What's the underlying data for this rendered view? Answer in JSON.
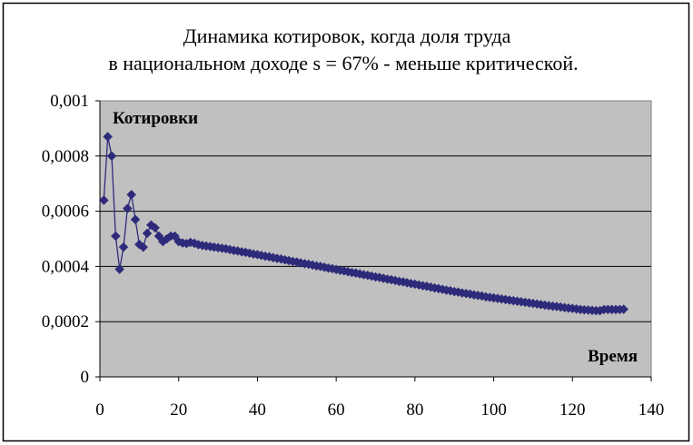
{
  "chart_data": {
    "type": "line",
    "title_lines": [
      "Динамика котировок, когда доля труда",
      "в национальном доходе s = 67% - меньше критической."
    ],
    "ylabel": "Котировки",
    "xlabel": "Время",
    "xlim": [
      0,
      140
    ],
    "ylim": [
      0,
      0.001
    ],
    "x_ticks": [
      "0",
      "20",
      "40",
      "60",
      "80",
      "100",
      "120",
      "140"
    ],
    "y_ticks": [
      "0",
      "0,0002",
      "0,0004",
      "0,0006",
      "0,0008",
      "0,001"
    ],
    "grid": "horizontal",
    "legend": "none",
    "colors": {
      "series": "#2e2a7a",
      "plot_bg": "#c0c0c0"
    },
    "series": [
      {
        "x": [
          1,
          2,
          3,
          4,
          5,
          6,
          7,
          8,
          9,
          10,
          11,
          12,
          13,
          14,
          15,
          16,
          17,
          18,
          19,
          20,
          21,
          22,
          23,
          24,
          25,
          26,
          27,
          28,
          29,
          30,
          31,
          32,
          33,
          34,
          35,
          36,
          37,
          38,
          39,
          40,
          41,
          42,
          43,
          44,
          45,
          46,
          47,
          48,
          49,
          50,
          51,
          52,
          53,
          54,
          55,
          56,
          57,
          58,
          59,
          60,
          61,
          62,
          63,
          64,
          65,
          66,
          67,
          68,
          69,
          70,
          71,
          72,
          73,
          74,
          75,
          76,
          77,
          78,
          79,
          80,
          81,
          82,
          83,
          84,
          85,
          86,
          87,
          88,
          89,
          90,
          91,
          92,
          93,
          94,
          95,
          96,
          97,
          98,
          99,
          100,
          101,
          102,
          103,
          104,
          105,
          106,
          107,
          108,
          109,
          110,
          111,
          112,
          113,
          114,
          115,
          116,
          117,
          118,
          119,
          120,
          121,
          122,
          123,
          124,
          125,
          126,
          127,
          128,
          129,
          130,
          131,
          132,
          133
        ],
        "y": [
          0.00064,
          0.00087,
          0.0008,
          0.00051,
          0.00039,
          0.00047,
          0.00061,
          0.00066,
          0.00057,
          0.00048,
          0.00047,
          0.00052,
          0.00055,
          0.00054,
          0.00051,
          0.00049,
          0.0005,
          0.00051,
          0.00051,
          0.00049,
          0.000485,
          0.000483,
          0.000487,
          0.000484,
          0.000479,
          0.000476,
          0.000474,
          0.000472,
          0.00047,
          0.000468,
          0.000466,
          0.000464,
          0.000461,
          0.000458,
          0.000456,
          0.000453,
          0.000451,
          0.000448,
          0.000445,
          0.000443,
          0.00044,
          0.000437,
          0.000435,
          0.000432,
          0.000429,
          0.000427,
          0.000424,
          0.000421,
          0.000418,
          0.000416,
          0.000413,
          0.00041,
          0.000408,
          0.000405,
          0.000402,
          0.0004,
          0.000397,
          0.000394,
          0.000392,
          0.000389,
          0.000386,
          0.000384,
          0.000381,
          0.000378,
          0.000376,
          0.000373,
          0.00037,
          0.000368,
          0.000365,
          0.000362,
          0.00036,
          0.000357,
          0.000354,
          0.000352,
          0.000349,
          0.000346,
          0.000344,
          0.000341,
          0.000338,
          0.000336,
          0.000333,
          0.00033,
          0.000328,
          0.000325,
          0.000322,
          0.00032,
          0.000317,
          0.000314,
          0.000312,
          0.000309,
          0.000307,
          0.000304,
          0.000302,
          0.0003,
          0.000297,
          0.000295,
          0.000293,
          0.00029,
          0.000288,
          0.000286,
          0.000284,
          0.000282,
          0.00028,
          0.000278,
          0.000276,
          0.000274,
          0.000272,
          0.00027,
          0.000268,
          0.000266,
          0.000264,
          0.000262,
          0.00026,
          0.000258,
          0.000256,
          0.000255,
          0.000253,
          0.000251,
          0.000249,
          0.000248,
          0.000246,
          0.000244,
          0.000243,
          0.000242,
          0.000241,
          0.00024,
          0.00024,
          0.000244,
          0.000244,
          0.000244,
          0.000244,
          0.000244,
          0.000245
        ]
      }
    ]
  }
}
